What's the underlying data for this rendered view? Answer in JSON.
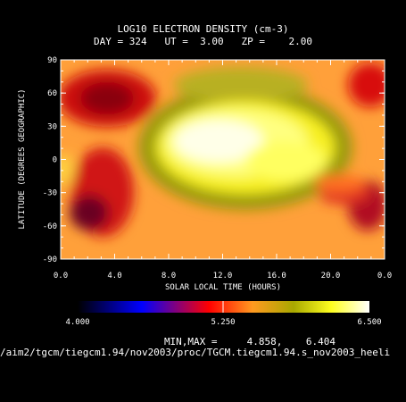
{
  "colors": {
    "background": "#000000",
    "text": "#ffffff",
    "colorbar": [
      "#000000",
      "#0000ff",
      "#ff0000",
      "#ffa500",
      "#aaaa00",
      "#ffff00",
      "#ffffff"
    ]
  },
  "chart_data": {
    "type": "heatmap",
    "title": "LOG10 ELECTRON DENSITY (cm-3)",
    "subtitle": "DAY = 324   UT =  3.00   ZP =    2.00",
    "xlabel": "SOLAR LOCAL TIME (HOURS)",
    "ylabel": "LATITUDE (DEGREES GEOGRAPHIC)",
    "x_tick_labels": [
      "0.0",
      "4.0",
      "8.0",
      "12.0",
      "16.0",
      "20.0",
      "0.0"
    ],
    "y_tick_labels": [
      "90",
      "60",
      "30",
      "0",
      "-30",
      "-60",
      "-90"
    ],
    "y_ticks": [
      90,
      60,
      30,
      0,
      -30,
      -60,
      -90
    ],
    "xlim": [
      0,
      24
    ],
    "ylim": [
      -90,
      90
    ],
    "colorbar": {
      "min": 4.0,
      "mid": 5.25,
      "max": 6.5,
      "labels": [
        "4.000",
        "5.250",
        "6.500"
      ]
    },
    "min_max_label": "MIN,MAX =",
    "min_value": "4.858,",
    "max_value": "6.404",
    "file_path": "/aim2/tgcm/tiegcm1.94/nov2003/proc/TGCM.tiegcm1.94.s_nov2003_heeli"
  }
}
